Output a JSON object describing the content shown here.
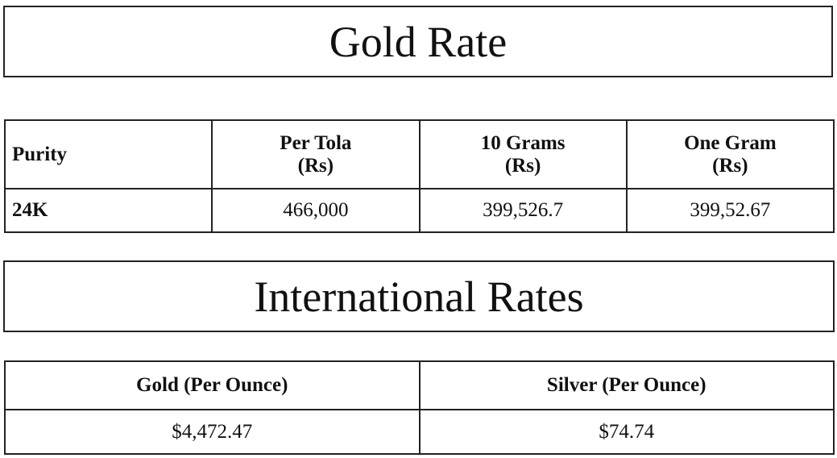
{
  "header": {
    "title": "Gold Rate"
  },
  "table": {
    "columns": [
      "Purity",
      "Per Tola\n(Rs)",
      "10 Grams\n(Rs)",
      "One Gram\n(Rs)"
    ],
    "rows": [
      [
        "24K",
        "466,000",
        "399,526.7",
        "399,52.67"
      ]
    ]
  },
  "international": {
    "title": "International Rates",
    "table": {
      "columns": [
        "Gold (Per Ounce)",
        "Silver (Per Ounce)"
      ],
      "rows": [
        [
          "$4,472.47",
          "$74.74"
        ]
      ]
    }
  }
}
